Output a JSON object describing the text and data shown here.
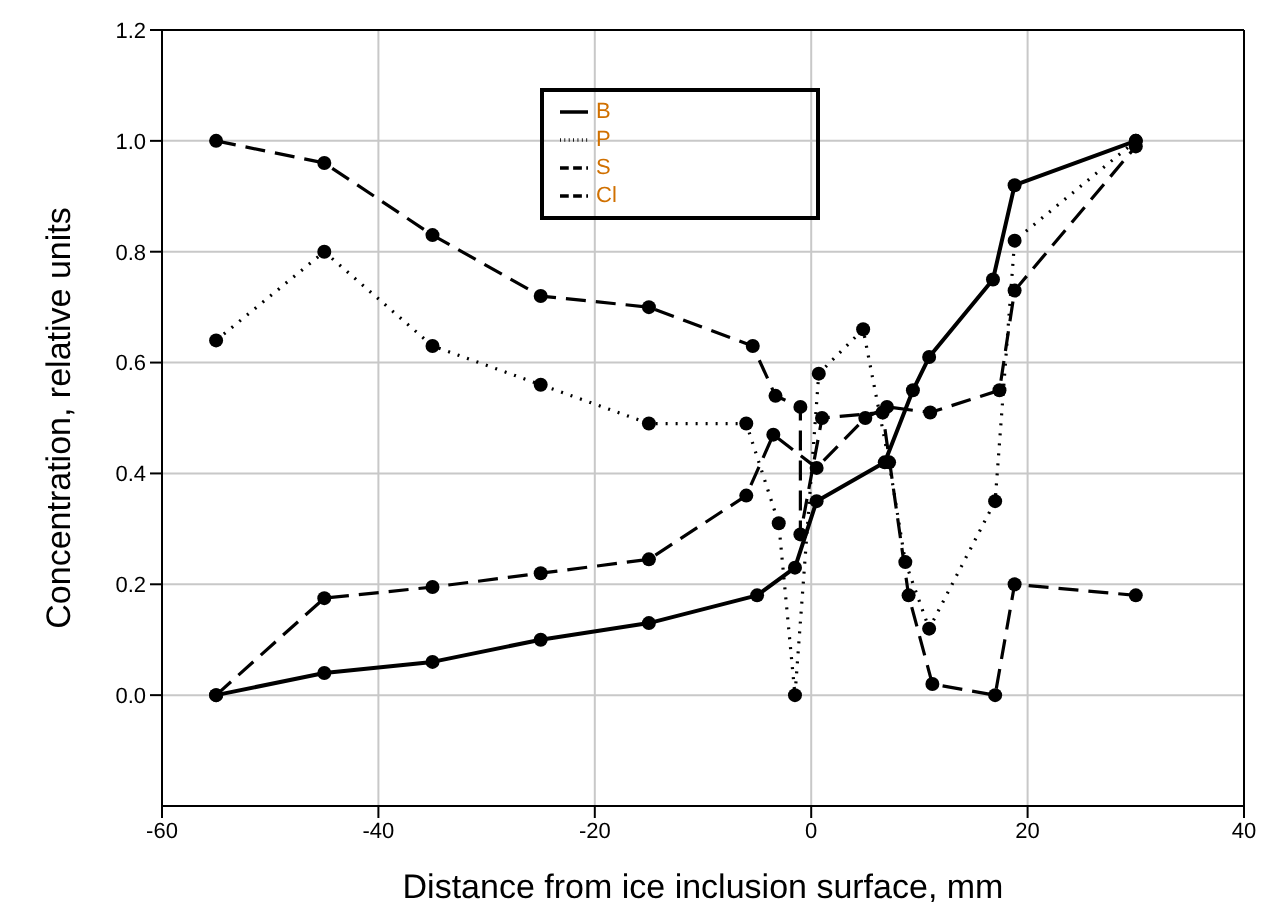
{
  "chart_data": {
    "type": "line",
    "xlabel": "Distance from ice inclusion surface, mm",
    "ylabel": "Concentration, relative units",
    "xlim": [
      -60,
      40
    ],
    "xticks": [
      -60,
      -40,
      -20,
      0,
      20,
      40
    ],
    "ylim": [
      -0.2,
      1.2
    ],
    "yticks": [
      {
        "value": 0,
        "label": "0.0"
      },
      0.2,
      0.4,
      0.6,
      0.8,
      {
        "value": 1,
        "label": "1.0"
      },
      1.2
    ],
    "grid": true,
    "legend": "top",
    "marker": "circle",
    "series": [
      {
        "name": "B",
        "color": "#000000",
        "line_style": "solid",
        "x": [
          -55,
          -45,
          -35,
          -25,
          -15,
          -5,
          -1.5,
          0.5,
          6.8,
          9.4,
          10.9,
          16.8,
          18.8,
          30
        ],
        "values": [
          0,
          0.04,
          0.06,
          0.1,
          0.13,
          0.18,
          0.23,
          0.35,
          0.42,
          0.55,
          0.61,
          0.75,
          0.92,
          1.0
        ]
      },
      {
        "name": "P",
        "color": "#000000",
        "line_style": "dotted",
        "x": [
          -55,
          -45,
          -35,
          -25,
          -15,
          -6,
          -3,
          -1.5,
          0.7,
          4.8,
          7.2,
          8.7,
          10.9,
          17,
          18.8,
          30
        ],
        "values": [
          0.64,
          0.8,
          0.63,
          0.56,
          0.49,
          0.49,
          0.31,
          0,
          0.58,
          0.66,
          0.42,
          0.24,
          0.12,
          0.35,
          0.82,
          1.0
        ]
      },
      {
        "name": "S",
        "color": "#000000",
        "line_style": "dashed",
        "x": [
          -55,
          -45,
          -35,
          -25,
          -15,
          -6,
          -3.5,
          0.5,
          5,
          7,
          11,
          17.4,
          18.8,
          30
        ],
        "values": [
          0,
          0.175,
          0.195,
          0.22,
          0.245,
          0.36,
          0.47,
          0.41,
          0.5,
          0.52,
          0.51,
          0.55,
          0.73,
          0.99
        ]
      },
      {
        "name": "Cl",
        "color": "#000000",
        "line_style": "dashed",
        "x": [
          -55,
          -45,
          -35,
          -25,
          -15,
          -5.4,
          -3.3,
          -1,
          -1,
          1,
          6.6,
          9,
          11.2,
          17,
          18.8,
          30
        ],
        "values": [
          1.0,
          0.96,
          0.83,
          0.72,
          0.7,
          0.63,
          0.54,
          0.52,
          0.29,
          0.5,
          0.51,
          0.18,
          0.02,
          0,
          0.2,
          0.18
        ]
      }
    ]
  }
}
